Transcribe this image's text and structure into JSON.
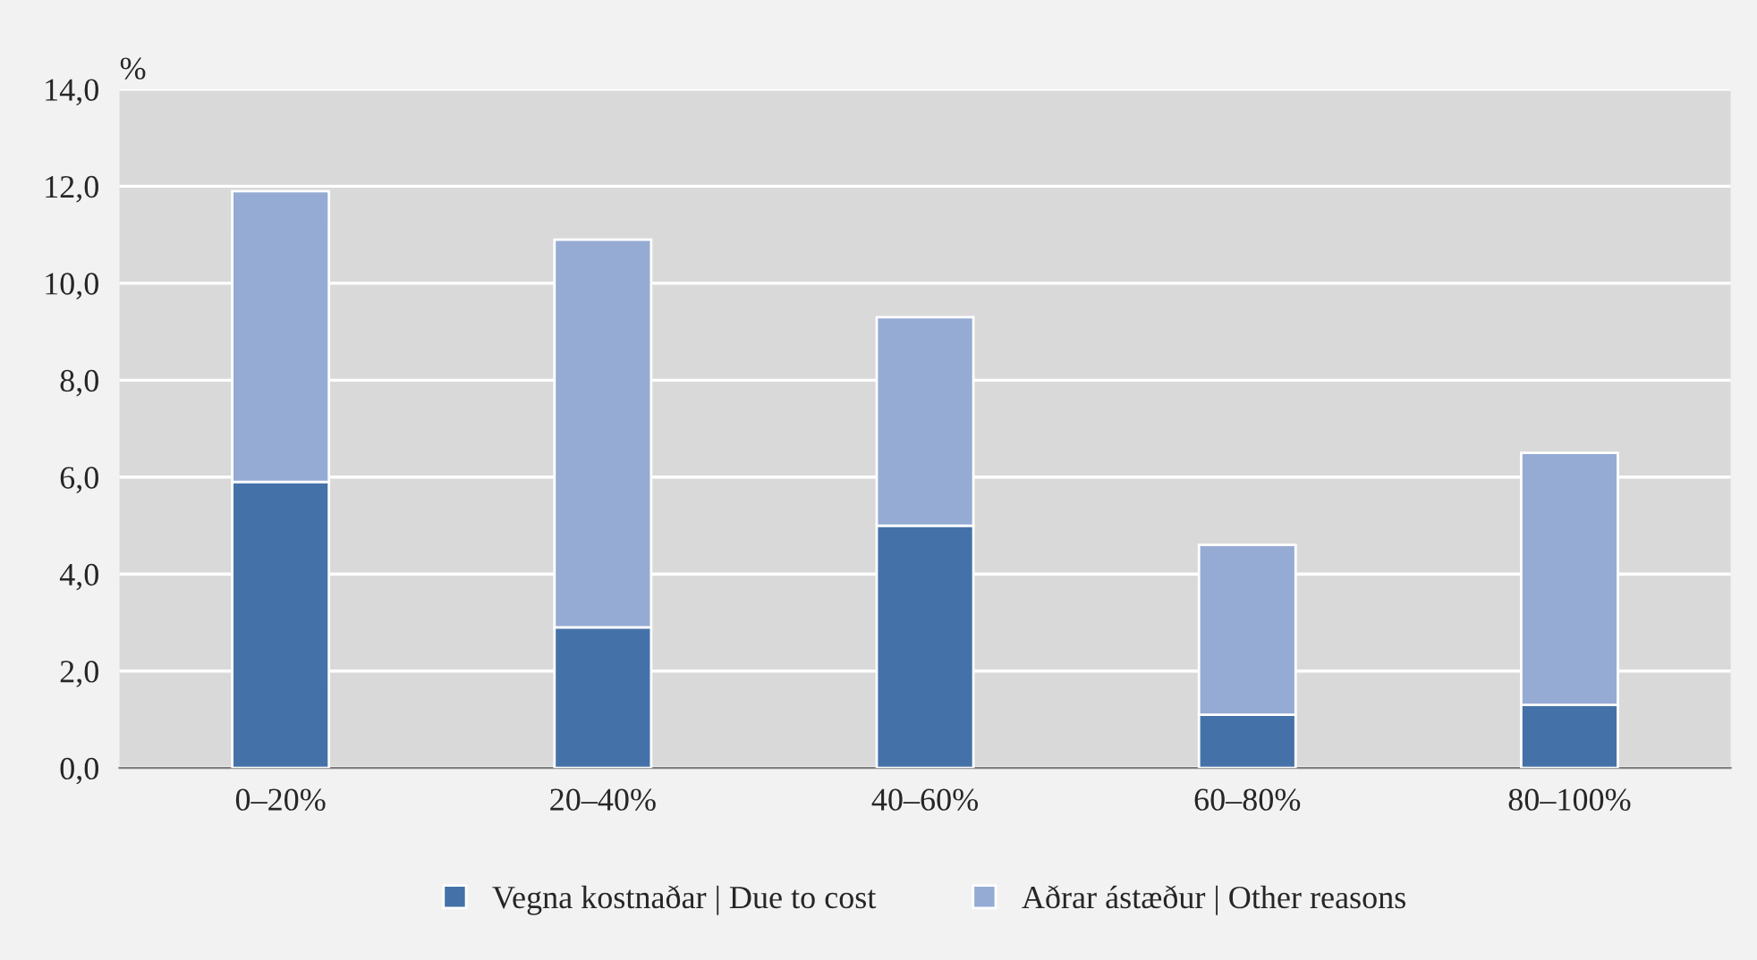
{
  "chart_data": {
    "type": "bar",
    "stacked": true,
    "ylabel": "%",
    "categories": [
      "0–20%",
      "20–40%",
      "40–60%",
      "60–80%",
      "80–100%"
    ],
    "series": [
      {
        "name": "Vegna kostnaðar | Due to cost",
        "color": "#4472a8",
        "values": [
          5.9,
          2.9,
          5.0,
          1.1,
          1.3
        ]
      },
      {
        "name": "Aðrar ástæður | Other reasons",
        "color": "#95abd3",
        "values": [
          6.0,
          8.0,
          4.3,
          3.5,
          5.2
        ]
      }
    ],
    "ylim": [
      0,
      14
    ],
    "yticks": [
      {
        "value": 0,
        "label": "0,0"
      },
      {
        "value": 2,
        "label": "2,0"
      },
      {
        "value": 4,
        "label": "4,0"
      },
      {
        "value": 6,
        "label": "6,0"
      },
      {
        "value": 8,
        "label": "8,0"
      },
      {
        "value": 10,
        "label": "10,0"
      },
      {
        "value": 12,
        "label": "12,0"
      },
      {
        "value": 14,
        "label": "14,0"
      }
    ],
    "grid": "y",
    "legend": "bottom"
  }
}
